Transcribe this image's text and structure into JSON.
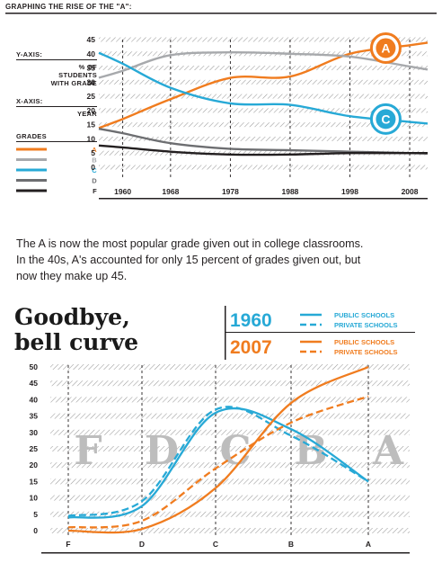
{
  "chart_data": [
    {
      "type": "line",
      "title": "GRAPHING THE RISE OF THE \"A\":",
      "y_axis_key": "Y-AXIS:",
      "y_axis_desc": [
        "% OF",
        "STUDENTS",
        "WITH GRADE"
      ],
      "x_axis_key": "X-AXIS:",
      "x_axis_desc": "YEAR",
      "legend_title": "GRADES",
      "x": [
        1960,
        1968,
        1978,
        1988,
        1998,
        2008
      ],
      "x_tick_labels": [
        "1960",
        "1968",
        "1978",
        "1988",
        "1998",
        "2008"
      ],
      "y_ticks": [
        "45",
        "40",
        "35",
        "30",
        "25",
        "20",
        "15",
        "10",
        "5",
        "0"
      ],
      "ylim": [
        0,
        45
      ],
      "grid": true,
      "series": [
        {
          "name": "A",
          "color": "#f07c1f",
          "values": [
            17,
            24,
            31.5,
            32,
            40,
            43
          ]
        },
        {
          "name": "B",
          "color": "#a7a9ac",
          "values": [
            34,
            39.5,
            40.5,
            40,
            39,
            35.5
          ]
        },
        {
          "name": "C",
          "color": "#27a9d6",
          "values": [
            36.5,
            28,
            22.5,
            22,
            18,
            16
          ]
        },
        {
          "name": "D",
          "color": "#6d6e71",
          "values": [
            12,
            8.5,
            6.5,
            6,
            5.5,
            5
          ]
        },
        {
          "name": "F",
          "color": "#231f20",
          "values": [
            7,
            5.5,
            4.5,
            4.5,
            5,
            5
          ]
        }
      ],
      "badges": [
        {
          "letter": "A",
          "color": "#f07c1f",
          "at_year": 2004,
          "at_value": 42
        },
        {
          "letter": "C",
          "color": "#27a9d6",
          "at_year": 2004,
          "at_value": 17
        }
      ]
    },
    {
      "type": "line",
      "title": [
        "Goodbye,",
        "bell curve"
      ],
      "legend_placement": "top-right",
      "legend": {
        "groups": [
          {
            "year": "1960",
            "color": "#27a9d6",
            "entries": [
              "PUBLIC SCHOOLS",
              "PRIVATE SCHOOLS"
            ]
          },
          {
            "year": "2007",
            "color": "#f07c1f",
            "entries": [
              "PUBLIC SCHOOLS",
              "PRIVATE SCHOOLS"
            ]
          }
        ]
      },
      "categories": [
        "F",
        "D",
        "C",
        "B",
        "A"
      ],
      "background_letters": [
        "F",
        "D",
        "C",
        "B",
        "A"
      ],
      "y_ticks": [
        "50",
        "45",
        "40",
        "35",
        "30",
        "25",
        "20",
        "15",
        "10",
        "5",
        "0"
      ],
      "ylim": [
        0,
        50
      ],
      "grid": true,
      "series": [
        {
          "year": "1960",
          "group": "PUBLIC SCHOOLS",
          "color": "#27a9d6",
          "style": "solid",
          "values": [
            4,
            7.5,
            36,
            31,
            15
          ]
        },
        {
          "year": "1960",
          "group": "PRIVATE SCHOOLS",
          "color": "#27a9d6",
          "style": "dashed",
          "values": [
            4.5,
            9,
            37,
            29,
            15
          ]
        },
        {
          "year": "2007",
          "group": "PUBLIC SCHOOLS",
          "color": "#f07c1f",
          "style": "solid",
          "values": [
            0,
            0.5,
            13,
            39,
            50
          ]
        },
        {
          "year": "2007",
          "group": "PRIVATE SCHOOLS",
          "color": "#f07c1f",
          "style": "dashed",
          "values": [
            1,
            3,
            19,
            33,
            41
          ]
        }
      ]
    }
  ],
  "description": {
    "lines": [
      "The A is now the most popular grade given out in college classrooms.",
      "In the 40s, A's accounted for only 15 percent of grades given out, but",
      "now they make up 45."
    ]
  }
}
